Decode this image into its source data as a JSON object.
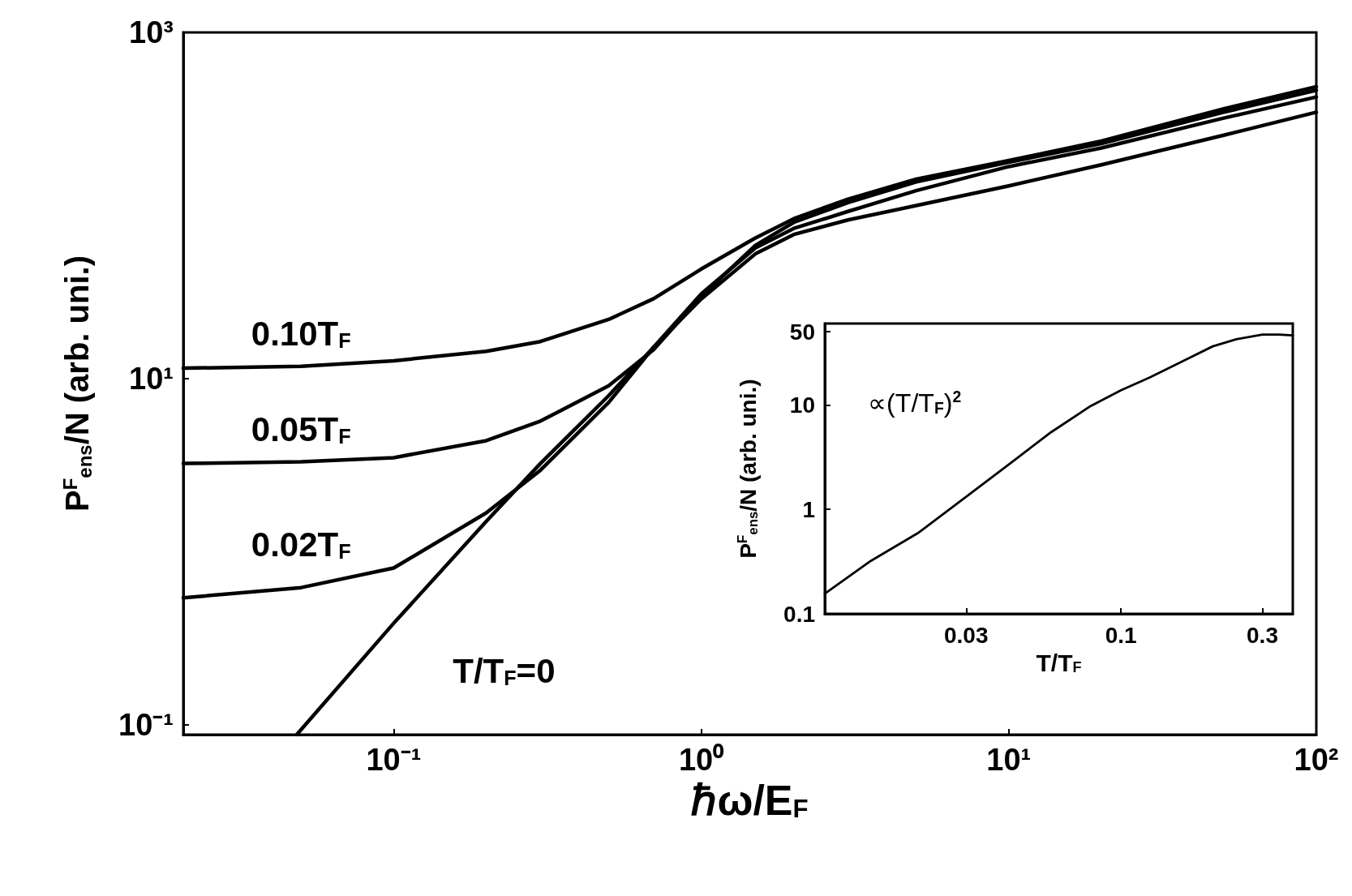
{
  "chart_data": [
    {
      "type": "line",
      "xlabel": "ℏω/E$_{F}$",
      "ylabel": "P$^{F}$$_{ens}$/N (arb. uni.)",
      "log": "xy",
      "xlim": [
        0.0207,
        100
      ],
      "ylim": [
        0.088,
        1000
      ],
      "xticks": [
        {
          "value": 0.1,
          "label": "10⁻¹"
        },
        {
          "value": 1,
          "label": "10⁰"
        },
        {
          "value": 10,
          "label": "10¹"
        },
        {
          "value": 100,
          "label": "10²"
        }
      ],
      "yticks": [
        {
          "value": 0.1,
          "label": "10⁻¹"
        },
        {
          "value": 10,
          "label": "10¹"
        },
        {
          "value": 1000,
          "label": "10³"
        }
      ],
      "series": [
        {
          "name": "0.10T$_{F}$",
          "color": "#000000",
          "x": [
            0.0207,
            0.05,
            0.1,
            0.2,
            0.3,
            0.5,
            0.7,
            1,
            1.5,
            2,
            3,
            5,
            10,
            20,
            50,
            100
          ],
          "values": [
            11.5,
            11.8,
            12.7,
            14.4,
            16.4,
            22,
            29,
            43,
            65,
            84,
            109,
            142,
            182,
            236,
            362,
            486
          ]
        },
        {
          "name": "0.05T$_{F}$",
          "color": "#000000",
          "x": [
            0.0207,
            0.05,
            0.1,
            0.2,
            0.3,
            0.5,
            0.7,
            1,
            1.5,
            2,
            3,
            5,
            10,
            20,
            50,
            100
          ],
          "values": [
            3.24,
            3.31,
            3.5,
            4.39,
            5.69,
            9.1,
            14.7,
            29.9,
            58.9,
            80,
            104,
            137,
            178,
            228,
            346,
            464
          ]
        },
        {
          "name": "0.02T$_{F}$",
          "color": "#000000",
          "x": [
            0.0207,
            0.05,
            0.1,
            0.2,
            0.3,
            0.5,
            0.7,
            1,
            1.5,
            2,
            3,
            5,
            10,
            20,
            50,
            100
          ],
          "values": [
            0.543,
            0.622,
            0.807,
            1.68,
            2.96,
            7.29,
            15.2,
            30.9,
            56.9,
            73.8,
            92.5,
            122,
            168,
            215,
            320,
            424
          ]
        },
        {
          "name": "T/T$_{F}$=0",
          "color": "#000000",
          "x": [
            0.0484,
            0.1,
            0.2,
            0.3,
            0.5,
            0.7,
            1,
            1.5,
            2,
            3,
            5,
            10,
            20,
            50,
            100
          ],
          "values": [
            0.088,
            0.387,
            1.5,
            3.24,
            7.98,
            15.2,
            28.9,
            52.6,
            68.1,
            82.6,
            100,
            130,
            172,
            255,
            346
          ]
        }
      ]
    },
    {
      "type": "line",
      "xlabel": "T/T$_{F}$",
      "ylabel": "P$^{F}$$_{ens}$/N (arb. uni.)",
      "log": "xy",
      "xlim": [
        0.01,
        0.38
      ],
      "ylim": [
        0.1,
        60
      ],
      "xticks": [
        0.03,
        0.1,
        0.3
      ],
      "yticks": [
        0.1,
        1,
        10,
        50
      ],
      "annotations": [
        "∝(T/T$_{F}$)$^{2}$"
      ],
      "series": [
        {
          "color": "#000000",
          "x": [
            0.01,
            0.0143,
            0.0206,
            0.03,
            0.043,
            0.0582,
            0.079,
            0.1,
            0.125,
            0.164,
            0.204,
            0.245,
            0.3,
            0.342,
            0.38
          ],
          "values": [
            0.156,
            0.321,
            0.591,
            1.32,
            2.86,
            5.5,
            9.75,
            13.8,
            18.3,
            26.7,
            36.3,
            42.4,
            47.1,
            47.1,
            46.2
          ]
        }
      ]
    }
  ]
}
